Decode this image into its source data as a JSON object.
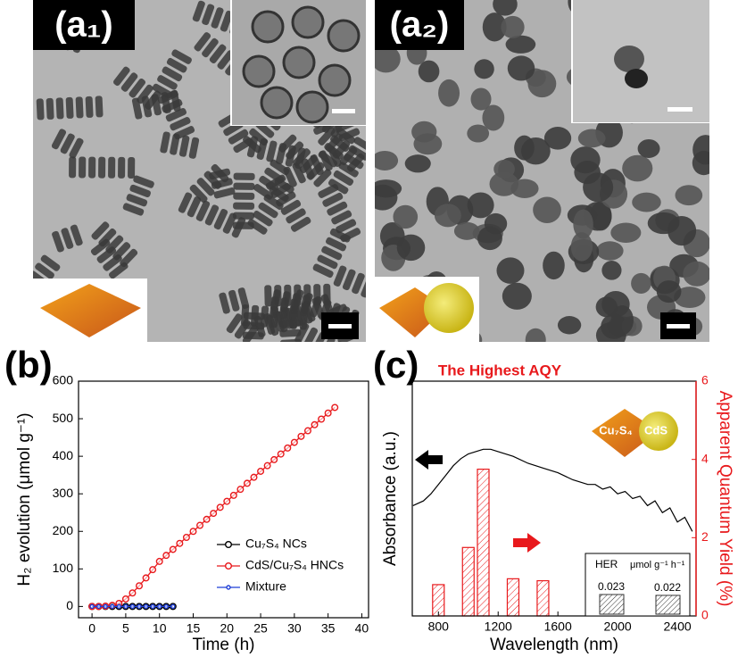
{
  "panels": {
    "a1": {
      "label": "(a₁)"
    },
    "a2": {
      "label": "(a₂)"
    }
  },
  "chart_data": [
    {
      "type": "line",
      "panel_label": "(b)",
      "xlabel": "Time (h)",
      "ylabel": "H₂ evolution (μmol g⁻¹)",
      "xlim": [
        -2,
        41
      ],
      "ylim": [
        -30,
        600
      ],
      "xticks": [
        0,
        5,
        10,
        15,
        20,
        25,
        30,
        35,
        40
      ],
      "yticks": [
        0,
        100,
        200,
        300,
        400,
        500,
        600
      ],
      "legend": "lower-right",
      "series": [
        {
          "name": "Cu₇S₄ NCs",
          "color": "#000000",
          "x": [
            0,
            1,
            2,
            3,
            4,
            5,
            6,
            7,
            8,
            9,
            10,
            11,
            12
          ],
          "values": [
            0,
            0,
            0,
            0,
            0,
            0,
            0,
            0,
            0,
            0,
            0,
            0,
            0
          ]
        },
        {
          "name": "CdS/Cu₇S₄ HNCs",
          "color": "#e8191c",
          "x": [
            0,
            1,
            2,
            3,
            4,
            5,
            6,
            7,
            8,
            9,
            10,
            11,
            12,
            13,
            14,
            15,
            16,
            17,
            18,
            19,
            20,
            21,
            22,
            23,
            24,
            25,
            26,
            27,
            28,
            29,
            30,
            31,
            32,
            33,
            34,
            35,
            36
          ],
          "values": [
            0,
            0,
            1,
            3,
            8,
            20,
            36,
            55,
            76,
            98,
            120,
            136,
            152,
            168,
            184,
            200,
            216,
            232,
            248,
            264,
            280,
            296,
            312,
            328,
            344,
            360,
            375,
            391,
            406,
            422,
            437,
            453,
            468,
            484,
            499,
            515,
            530
          ]
        },
        {
          "name": "Mixture",
          "color": "#1f3fd6",
          "x": [
            0,
            1,
            2,
            3,
            4,
            5,
            6,
            7,
            8,
            9,
            10,
            11,
            12
          ],
          "values": [
            0,
            0,
            0,
            0,
            0,
            0,
            0,
            0,
            0,
            0,
            0,
            0,
            0
          ]
        }
      ]
    },
    {
      "type": "bar-line",
      "panel_label": "(c)",
      "title": "The Highest AQY",
      "xlabel": "Wavelength (nm)",
      "ylabel": "Absorbance (a.u.)",
      "y2label": "Apparent Quantum Yield (%)",
      "xlim": [
        625,
        2525
      ],
      "ylim": [
        0,
        1
      ],
      "y2lim": [
        0,
        6
      ],
      "xticks": [
        800,
        1200,
        1600,
        2000,
        2400
      ],
      "y2ticks": [
        0,
        2,
        4,
        6
      ],
      "y2color": "#e8191c",
      "series": [
        {
          "mark": "line",
          "color": "#000000",
          "x": [
            630,
            700,
            750,
            800,
            850,
            900,
            950,
            1000,
            1050,
            1100,
            1150,
            1200,
            1300,
            1400,
            1500,
            1600,
            1700,
            1800,
            1850,
            1900,
            1950,
            2000,
            2050,
            2100,
            2150,
            2200,
            2250,
            2300,
            2350,
            2400,
            2450,
            2500
          ],
          "values": [
            0.47,
            0.49,
            0.52,
            0.56,
            0.6,
            0.64,
            0.67,
            0.69,
            0.7,
            0.71,
            0.71,
            0.7,
            0.68,
            0.65,
            0.63,
            0.61,
            0.58,
            0.56,
            0.56,
            0.54,
            0.55,
            0.52,
            0.53,
            0.5,
            0.51,
            0.47,
            0.49,
            0.44,
            0.46,
            0.4,
            0.42,
            0.36
          ]
        },
        {
          "mark": "bar",
          "axis": "y2",
          "color": "#e8191c",
          "x": [
            800,
            1000,
            1100,
            1300,
            1500
          ],
          "values": [
            0.8,
            1.75,
            3.75,
            0.95,
            0.9
          ]
        }
      ],
      "inset": {
        "labels": [
          "Cu₇S₄",
          "CdS"
        ]
      },
      "her": {
        "title": "HER",
        "unit": "μmol g⁻¹ h⁻¹",
        "values": [
          0.023,
          0.022
        ]
      }
    }
  ]
}
